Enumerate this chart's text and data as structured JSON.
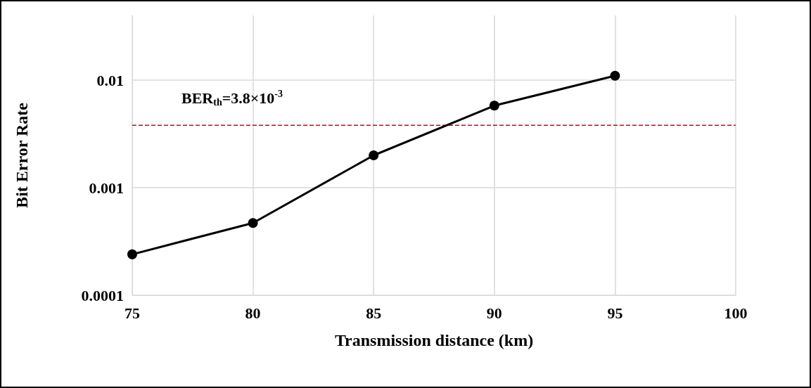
{
  "chart_data": {
    "type": "line",
    "xlabel": "Transmission distance (km)",
    "ylabel": "Bit Error Rate",
    "x": [
      75,
      80,
      85,
      90,
      95
    ],
    "series": [
      {
        "color": "#000000",
        "values": [
          0.00024,
          0.00047,
          0.002,
          0.0058,
          0.011
        ]
      }
    ],
    "xlim": [
      75,
      100
    ],
    "xticks": [
      75,
      80,
      85,
      90,
      95,
      100
    ],
    "ylim": [
      0.0001,
      0.04
    ],
    "yticks": [
      0.0001,
      0.001,
      0.01
    ],
    "log": "y",
    "grid": true,
    "marker": "circle",
    "line_style": "solid",
    "ref_lines": [
      {
        "axis": "y",
        "value": 0.0038,
        "label": "BER$_{th}$=3.8×10$^{-3}$",
        "color": "#e00000",
        "line_style": "dashed"
      }
    ]
  }
}
